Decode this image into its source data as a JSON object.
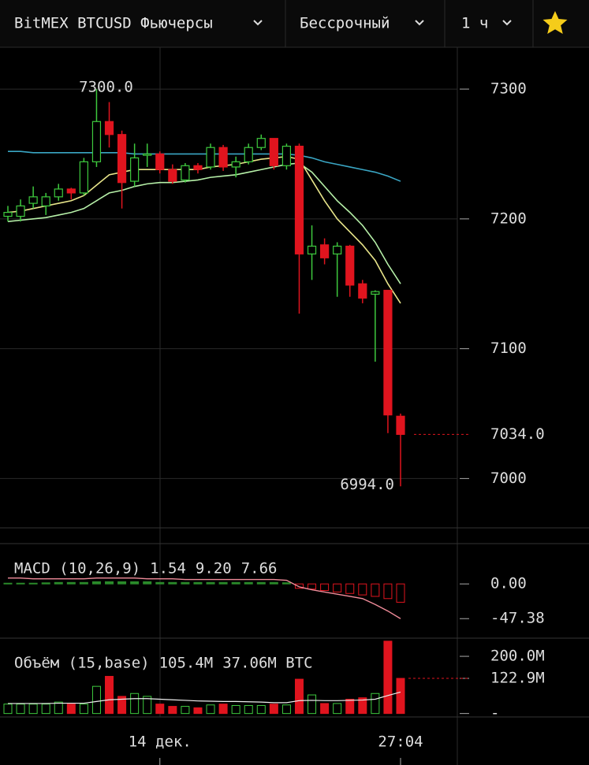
{
  "header": {
    "symbol": "BitMEX BTCUSD Фьючерсы",
    "contract": "Бессрочный",
    "interval": "1 ч"
  },
  "chart_data": [
    {
      "type": "candlestick",
      "categories": [
        null,
        null,
        null,
        null,
        null,
        null,
        null,
        null,
        null,
        null,
        null,
        null,
        "14 дек.",
        null,
        null,
        null,
        null,
        null,
        null,
        null,
        null,
        null,
        null,
        null,
        null,
        null,
        null,
        null,
        null,
        null,
        null,
        "27:04"
      ],
      "open": [
        7202,
        7202,
        7212,
        7210,
        7217,
        7223,
        7220,
        7244,
        7275,
        7265,
        7229,
        7249,
        7250,
        7238,
        7230,
        7241,
        7240,
        7255,
        7240,
        7244,
        7255,
        7262,
        7241,
        7256,
        7173,
        7180,
        7173,
        7179,
        7150,
        7142,
        7145,
        7048
      ],
      "high": [
        7210,
        7215,
        7225,
        7220,
        7227,
        7224,
        7247,
        7300,
        7290,
        7268,
        7258,
        7258,
        7252,
        7242,
        7243,
        7243,
        7258,
        7257,
        7248,
        7258,
        7265,
        7262,
        7258,
        7258,
        7195,
        7185,
        7182,
        7180,
        7153,
        7145,
        7145,
        7050
      ],
      "low": [
        7198,
        7198,
        7208,
        7203,
        7214,
        7215,
        7218,
        7240,
        7255,
        7208,
        7225,
        7240,
        7235,
        7227,
        7228,
        7235,
        7238,
        7237,
        7232,
        7242,
        7253,
        7238,
        7238,
        7127,
        7153,
        7165,
        7140,
        7140,
        7135,
        7090,
        7035,
        6994
      ],
      "close": [
        7205,
        7210,
        7217,
        7217,
        7223,
        7220,
        7244,
        7275,
        7265,
        7228,
        7247,
        7250,
        7238,
        7229,
        7241,
        7238,
        7255,
        7240,
        7244,
        7255,
        7262,
        7241,
        7256,
        7173,
        7179,
        7170,
        7179,
        7149,
        7139,
        7144,
        7049,
        7034
      ],
      "up_color": "#3ec93e",
      "down_color": "#e0141e",
      "lines": [
        {
          "color": "#3aa6c4",
          "values": [
            7252,
            7252,
            7251,
            7251,
            7251,
            7251,
            7251,
            7251,
            7251,
            7251,
            7250,
            7250,
            7250,
            7250,
            7250,
            7250,
            7250,
            7250,
            7250,
            7250,
            7250,
            7250,
            7250,
            7249,
            7247,
            7244,
            7242,
            7240,
            7238,
            7236,
            7233,
            7229
          ]
        },
        {
          "color": "#e8e58a",
          "values": [
            7205,
            7206,
            7208,
            7210,
            7212,
            7214,
            7218,
            7226,
            7234,
            7236,
            7238,
            7238,
            7238,
            7238,
            7238,
            7238,
            7240,
            7241,
            7242,
            7244,
            7246,
            7247,
            7248,
            7246,
            7230,
            7214,
            7200,
            7190,
            7180,
            7168,
            7150,
            7135
          ]
        },
        {
          "color": "#b6f0a8",
          "values": [
            7198,
            7199,
            7200,
            7201,
            7203,
            7205,
            7208,
            7214,
            7220,
            7222,
            7225,
            7227,
            7228,
            7228,
            7229,
            7230,
            7232,
            7233,
            7234,
            7236,
            7238,
            7240,
            7242,
            7243,
            7236,
            7225,
            7214,
            7205,
            7195,
            7182,
            7165,
            7150
          ]
        }
      ],
      "ylim": [
        6962,
        7331
      ],
      "yticks": [
        7000,
        7100,
        7200,
        7300
      ],
      "high_label": {
        "value": 7300,
        "label": "7300.0"
      },
      "low_label": {
        "value": 6994,
        "label": "6994.0"
      },
      "last_price": {
        "value": 7034,
        "label": "7034.0"
      }
    },
    {
      "type": "macd",
      "title": "MACD (10,26,9)",
      "readings": [
        {
          "text": "1.54",
          "color": "#3ec93e"
        },
        {
          "text": "9.20",
          "color": "#e0141e"
        },
        {
          "text": "7.66",
          "color": "#dddddd"
        }
      ],
      "histogram": [
        1,
        1,
        1,
        1.5,
        2,
        2,
        2,
        3,
        3,
        3,
        3,
        3,
        2,
        2,
        2,
        2,
        2,
        2,
        2,
        2,
        2,
        2,
        1.54,
        -6,
        -7,
        -9,
        -11,
        -13,
        -15,
        -17,
        -20,
        -25
      ],
      "line": {
        "color": "#f08c9a",
        "values": [
          8,
          8,
          7,
          7,
          7,
          7,
          7,
          8,
          8,
          8,
          8,
          7,
          7,
          7,
          6,
          6,
          6,
          6,
          6,
          6,
          6,
          6,
          5,
          -4,
          -8,
          -11,
          -14,
          -17,
          -20,
          -28,
          -37,
          -47.38
        ]
      },
      "ylim": [
        -74,
        55
      ],
      "yticks": [
        {
          "value": 0,
          "label": "0.00"
        },
        {
          "value": -47.38,
          "label": "-47.38"
        }
      ]
    },
    {
      "type": "volume",
      "title": "Объём (15,base)",
      "readings": [
        {
          "text": "105.4M",
          "color": "#e0141e"
        },
        {
          "text": "37.06M BTC",
          "color": "#dddddd"
        }
      ],
      "values": [
        33,
        33,
        33,
        33,
        40,
        33,
        33,
        95,
        130,
        60,
        70,
        60,
        33,
        25,
        25,
        20,
        30,
        33,
        28,
        28,
        28,
        33,
        30,
        120,
        65,
        35,
        35,
        50,
        55,
        70,
        253,
        122.9
      ],
      "line": {
        "color": "#eeeeee",
        "values": [
          35,
          35,
          35,
          35,
          36,
          36,
          36,
          42,
          48,
          50,
          52,
          52,
          50,
          48,
          46,
          44,
          43,
          42,
          42,
          41,
          40,
          38,
          38,
          45,
          46,
          45,
          45,
          46,
          47,
          50,
          63,
          75
        ]
      },
      "ylim": [
        -12,
        258
      ],
      "yticks": [
        {
          "value": 200,
          "label": "200.0M"
        },
        {
          "value": 122.9,
          "label": "122.9M"
        },
        {
          "value": 0,
          "label": "-"
        }
      ]
    }
  ]
}
